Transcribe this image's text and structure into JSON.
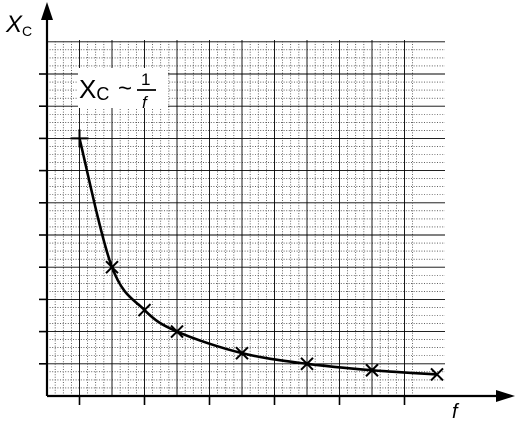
{
  "chart_data": {
    "type": "line",
    "ylabel_main": "X",
    "ylabel_sub": "C",
    "xlabel": "f",
    "annotation": {
      "lhs_main": "X",
      "lhs_sub": "C",
      "relation": "~",
      "numerator": "1",
      "denominator": "f"
    },
    "xlim": [
      0,
      11.25
    ],
    "ylim": [
      0,
      10
    ],
    "grid": true,
    "ticks_x": [
      1,
      3,
      5,
      7,
      9,
      11
    ],
    "ticks_y": [
      1,
      2,
      3,
      4,
      5,
      6,
      7,
      8,
      9,
      10
    ],
    "series": [
      {
        "marker": "cross",
        "x": [
          1,
          2,
          3,
          4,
          6,
          8,
          10,
          12
        ],
        "y": [
          8,
          4,
          2.67,
          2,
          1.33,
          1,
          0.8,
          0.67
        ]
      }
    ]
  }
}
